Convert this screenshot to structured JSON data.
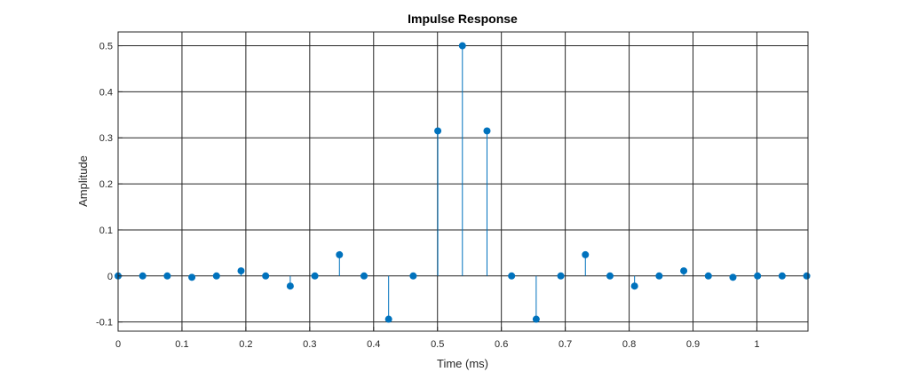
{
  "chart_data": {
    "type": "stem",
    "title": "Impulse Response",
    "xlabel": "Time (ms)",
    "ylabel": "Amplitude",
    "xlim": [
      0,
      1.08
    ],
    "ylim": [
      -0.12,
      0.53
    ],
    "x_ticks": [
      0,
      0.1,
      0.2,
      0.3,
      0.4,
      0.5,
      0.6,
      0.7,
      0.8,
      0.9,
      1
    ],
    "x_tick_labels": [
      "0",
      "0.1",
      "0.2",
      "0.3",
      "0.4",
      "0.5",
      "0.6",
      "0.7",
      "0.8",
      "0.9",
      "1"
    ],
    "y_ticks": [
      -0.1,
      0,
      0.1,
      0.2,
      0.3,
      0.4,
      0.5
    ],
    "y_tick_labels": [
      "-0.1",
      "0",
      "0.1",
      "0.2",
      "0.3",
      "0.4",
      "0.5"
    ],
    "grid": true,
    "series": [
      {
        "color": "#0072BD",
        "x": [
          0,
          0.0385,
          0.077,
          0.1155,
          0.154,
          0.1925,
          0.231,
          0.2695,
          0.308,
          0.3465,
          0.385,
          0.4235,
          0.462,
          0.5005,
          0.539,
          0.5775,
          0.616,
          0.6545,
          0.693,
          0.7315,
          0.77,
          0.8085,
          0.847,
          0.8855,
          0.924,
          0.9625,
          1.001,
          1.0395,
          1.078
        ],
        "y": [
          0,
          0,
          0,
          -0.003,
          0,
          0.011,
          0,
          -0.022,
          0,
          0.046,
          0,
          -0.094,
          0,
          0.315,
          0.5,
          0.315,
          0,
          -0.094,
          0,
          0.046,
          0,
          -0.022,
          0,
          0.011,
          0,
          -0.003,
          0,
          0,
          0
        ]
      }
    ]
  }
}
